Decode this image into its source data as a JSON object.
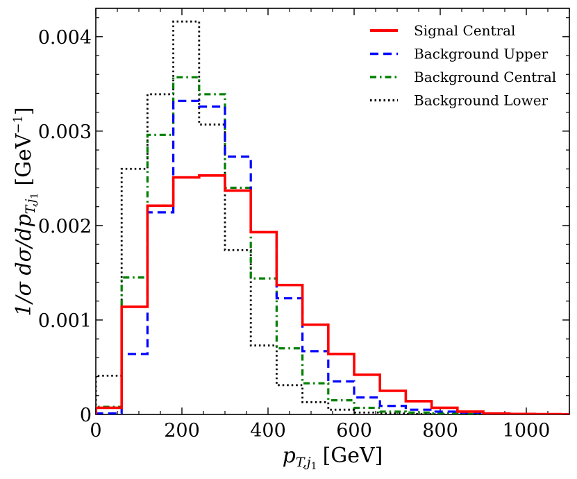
{
  "chart_data": {
    "type": "step",
    "x_bin_edges": [
      0,
      60,
      120,
      180,
      240,
      300,
      360,
      420,
      480,
      540,
      600,
      660,
      720,
      780,
      840,
      900,
      960,
      1020,
      1080,
      1100
    ],
    "series": [
      {
        "name": "Signal Central",
        "color": "#ff0000",
        "style": "solid",
        "values": [
          7e-05,
          0.00114,
          0.00221,
          0.00251,
          0.00253,
          0.00237,
          0.00193,
          0.00137,
          0.00095,
          0.00064,
          0.00042,
          0.00025,
          0.00014,
          7e-05,
          3e-05,
          1e-05,
          5e-06,
          3e-06,
          1e-06
        ]
      },
      {
        "name": "Background Upper",
        "color": "#0000ff",
        "style": "dashed",
        "values": [
          1e-05,
          0.00064,
          0.00214,
          0.00332,
          0.00326,
          0.00273,
          0.00193,
          0.00123,
          0.00067,
          0.00035,
          0.00018,
          9e-05,
          5e-05,
          3e-05,
          2e-05,
          1e-05,
          5e-06,
          3e-06,
          1e-06
        ]
      },
      {
        "name": "Background Central",
        "color": "#008000",
        "style": "dashdot",
        "values": [
          8e-05,
          0.00145,
          0.00296,
          0.00357,
          0.00339,
          0.0024,
          0.00144,
          0.0007,
          0.00033,
          0.00015,
          7e-05,
          3e-05,
          2e-05,
          1e-05,
          5e-06,
          3e-06,
          2e-06,
          1e-06,
          0.0
        ]
      },
      {
        "name": "Background Lower",
        "color": "#000000",
        "style": "dotted",
        "values": [
          0.00041,
          0.0026,
          0.00339,
          0.00416,
          0.00307,
          0.00174,
          0.00073,
          0.00031,
          0.00013,
          5e-05,
          2e-05,
          1e-05,
          5e-06,
          2e-06,
          1e-06,
          0.0,
          0.0,
          0.0,
          0.0
        ]
      }
    ],
    "xlabel": "p_{T,j1} [GeV]",
    "ylabel": "1/σ dσ/dp_{T,j1} [GeV^{-1}]",
    "xlim": [
      0,
      1100
    ],
    "ylim": [
      0,
      0.0043
    ],
    "x_ticks": [
      0,
      200,
      400,
      600,
      800,
      1000
    ],
    "x_tick_labels": [
      "0",
      "200",
      "400",
      "600",
      "800",
      "1000"
    ],
    "y_ticks": [
      0,
      0.001,
      0.002,
      0.003,
      0.004
    ],
    "y_tick_labels": [
      "0",
      "0.001",
      "0.002",
      "0.003",
      "0.004"
    ],
    "legend_position": "top-right",
    "grid": false
  },
  "labels": {
    "x_main": "p",
    "x_sub": "T,j",
    "x_subsub": "1",
    "x_unit": "[GeV]",
    "y_prefix": "1/σ dσ/dp",
    "y_sub": "T,j",
    "y_subsub": "1",
    "y_unit": "[GeV",
    "y_unit_exp": "−1",
    "y_unit_close": "]"
  }
}
